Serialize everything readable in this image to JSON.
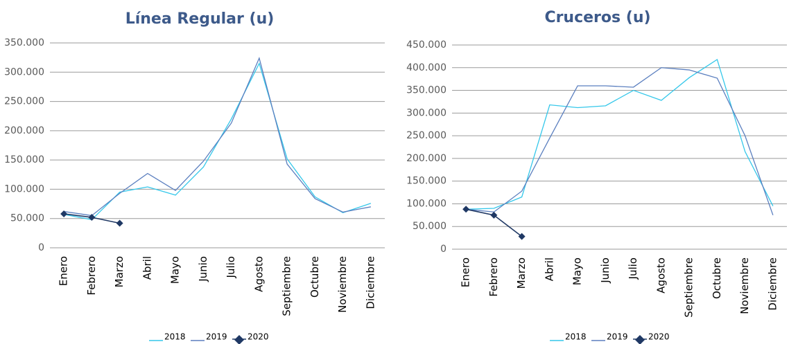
{
  "chart_data": [
    {
      "type": "line",
      "title": "Línea Regular (u)",
      "categories": [
        "Enero",
        "Febrero",
        "Marzo",
        "Abril",
        "Mayo",
        "Junio",
        "Julio",
        "Agosto",
        "Septiembre",
        "Octubre",
        "Noviembre",
        "Diciembre"
      ],
      "series": [
        {
          "name": "2018",
          "color": "#33c7ea",
          "values": [
            57000,
            48000,
            95000,
            104000,
            90000,
            138000,
            220000,
            315000,
            152000,
            87000,
            60000,
            76000
          ]
        },
        {
          "name": "2019",
          "color": "#5b7fbf",
          "values": [
            62000,
            55000,
            93000,
            127000,
            98000,
            148000,
            213000,
            324000,
            143000,
            84000,
            61000,
            70000
          ]
        },
        {
          "name": "2020",
          "color": "#1f3864",
          "marker": "diamond",
          "values": [
            58000,
            52000,
            42000,
            null,
            null,
            null,
            null,
            null,
            null,
            null,
            null,
            null
          ]
        }
      ],
      "ylim": [
        0,
        350000
      ],
      "yticks": [
        0,
        {
          "value": 50000,
          "label": "50.000"
        },
        {
          "value": 100000,
          "label": "100.000"
        },
        {
          "value": 150000,
          "label": "150.000"
        },
        {
          "value": 200000,
          "label": "200.000"
        },
        {
          "value": 250000,
          "label": "250.000"
        },
        {
          "value": 300000,
          "label": "300.000"
        },
        {
          "value": 350000,
          "label": "350.000"
        }
      ],
      "grid": true,
      "legend": "bottom"
    },
    {
      "type": "line",
      "title": "Cruceros (u)",
      "categories": [
        "Enero",
        "Febrero",
        "Marzo",
        "Abril",
        "Mayo",
        "Junio",
        "Julio",
        "Agosto",
        "Septiembre",
        "Octubre",
        "Noviembre",
        "Diciembre"
      ],
      "series": [
        {
          "name": "2018",
          "color": "#33c7ea",
          "values": [
            88000,
            90000,
            115000,
            318000,
            312000,
            316000,
            350000,
            328000,
            378000,
            418000,
            215000,
            95000
          ]
        },
        {
          "name": "2019",
          "color": "#5b7fbf",
          "values": [
            88000,
            82000,
            128000,
            245000,
            360000,
            360000,
            357000,
            400000,
            395000,
            377000,
            250000,
            75000
          ]
        },
        {
          "name": "2020",
          "color": "#1f3864",
          "marker": "diamond",
          "values": [
            88000,
            75000,
            28000,
            null,
            null,
            null,
            null,
            null,
            null,
            null,
            null,
            null
          ]
        }
      ],
      "ylim": [
        0,
        450000
      ],
      "yticks": [
        0,
        {
          "value": 50000,
          "label": "50.000"
        },
        {
          "value": 100000,
          "label": "100.000"
        },
        {
          "value": 150000,
          "label": "150.000"
        },
        {
          "value": 200000,
          "label": "200.000"
        },
        {
          "value": 250000,
          "label": "250.000"
        },
        {
          "value": 300000,
          "label": "300.000"
        },
        {
          "value": 350000,
          "label": "350.000"
        },
        {
          "value": 400000,
          "label": "400.000"
        },
        {
          "value": 450000,
          "label": "450.000"
        }
      ],
      "grid": true,
      "legend": "bottom"
    }
  ]
}
